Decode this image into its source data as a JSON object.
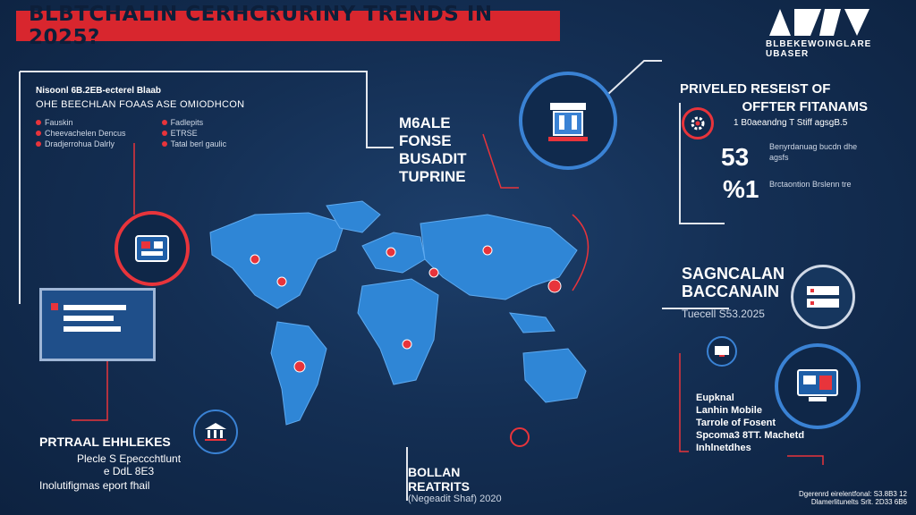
{
  "title": "BLBTCHALIN CERHCRURINY TRENDS IN 2025?",
  "logo": {
    "text": "BLBEKEWOINGLARE UBASER"
  },
  "left_panel": {
    "heading": "Nisoonl 6B.2EB-ecterel Blaab",
    "subheading": "OHE BEECHLAN FOAAS ASE OMIODHCON",
    "items_left": [
      "Fauskin",
      "Cheevachelen Dencus",
      "Dradjerrohua Dalrly"
    ],
    "items_right": [
      "Fadlepits",
      "ETRSE",
      "Tatal berl gaulic"
    ]
  },
  "center_label": {
    "lines": [
      "M6ALE",
      "FONSE",
      "BUSADIT",
      "TUPRINE"
    ]
  },
  "right_top": {
    "title_line1": "PRIVELED RESEIST OF",
    "title_line2": "OFFTER FITANAMS",
    "stat_caption": "1 B0aeandng T Stiff agsgB.5",
    "stat1": "53",
    "stat2": "%1",
    "stat1_desc": "Benyrdanuag bucdn dhe agsfs",
    "stat2_desc": "Brctaontion Brslenn tre"
  },
  "right_mid": {
    "line1": "SAGNCALAN",
    "line2": "BACCANAIN",
    "subtitle": "Tuecell S53.2025"
  },
  "right_bottom": {
    "lines": [
      "Eupknal",
      "Lanhin Mobile",
      "Tarrole of Fosent",
      "Spcoma3 8TT. Machetd",
      "Inhlnetdhes"
    ]
  },
  "bottom_left": {
    "title": "PRTRAAL EHHLEKES",
    "line1": "Plecle S Epeccchtlunt",
    "line2": "e DdL 8E3",
    "line3": "Inolutifigmas eport fhail"
  },
  "bottom_center": {
    "line1": "BOLLAN",
    "line2": "REATRITS",
    "line3": "(Negeadit Shaf) 2020"
  },
  "bottom_right": {
    "line1": "Dgerenrd eirelentfonal: S3.8B3 12",
    "line2": "Dlamerlitunelts Srlt. 2D33 6B6"
  },
  "colors": {
    "accent_red": "#e8343b",
    "bg_navy": "#142f54",
    "map_blue": "#2f86d6"
  },
  "icons": [
    "building-icon",
    "network-icon",
    "server-icon",
    "document-icon"
  ]
}
